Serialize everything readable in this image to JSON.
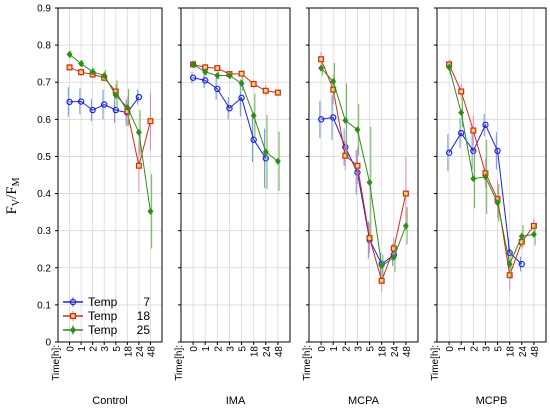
{
  "chart_data": {
    "type": "line",
    "ylabel_main": "F",
    "ylabel_sub1": "V",
    "ylabel_slash": "/F",
    "ylabel_sub2": "M",
    "ylim": [
      0,
      0.9
    ],
    "yticks": [
      "0",
      "0.1",
      "0.2",
      "0.3",
      "0.4",
      "0.5",
      "0.6",
      "0.7",
      "0.8",
      "0.9"
    ],
    "x_axis_title": "Time[h]:",
    "x_ticks": [
      "0",
      "1",
      "2",
      "3",
      "5",
      "18",
      "24",
      "48"
    ],
    "grid": true,
    "legend_position": "bottom-left of first panel",
    "legend": [
      {
        "label": "Temp",
        "value": "7"
      },
      {
        "label": "Temp",
        "value": "18"
      },
      {
        "label": "Temp",
        "value": "25"
      }
    ],
    "series_style": [
      {
        "temp": "7",
        "color": "#2020dd",
        "err": "#5b8ed6",
        "marker": "circle"
      },
      {
        "temp": "18",
        "color": "#cc2a1a",
        "err": "#e97fb0",
        "marker": "square"
      },
      {
        "temp": "25",
        "color": "#2e8b1e",
        "err": "#5fae3a",
        "marker": "diamond"
      }
    ],
    "panels": [
      {
        "name": "Control",
        "series": [
          {
            "temp": "7",
            "values": [
              0.647,
              0.648,
              0.625,
              0.64,
              0.625,
              0.618,
              0.66,
              null
            ],
            "err": [
              0.04,
              0.035,
              0.03,
              0.04,
              0.035,
              0.035,
              0.02,
              null
            ]
          },
          {
            "temp": "18",
            "values": [
              0.74,
              0.727,
              0.721,
              0.712,
              0.675,
              0.622,
              0.475,
              0.595
            ],
            "err": [
              0.01,
              0.01,
              0.01,
              0.01,
              0.02,
              0.04,
              0.07,
              0.08
            ]
          },
          {
            "temp": "25",
            "values": [
              0.775,
              0.75,
              0.728,
              0.718,
              0.665,
              0.632,
              0.565,
              0.352
            ],
            "err": [
              0.01,
              0.01,
              0.01,
              0.015,
              0.04,
              0.05,
              0.06,
              0.1
            ]
          }
        ]
      },
      {
        "name": "IMA",
        "series": [
          {
            "temp": "7",
            "values": [
              0.712,
              0.705,
              0.682,
              0.63,
              0.658,
              0.545,
              0.495,
              null
            ],
            "err": [
              0.015,
              0.02,
              0.03,
              0.03,
              0.05,
              0.06,
              0.08,
              null
            ]
          },
          {
            "temp": "18",
            "values": [
              0.748,
              0.74,
              0.738,
              0.722,
              0.723,
              0.695,
              0.677,
              0.672
            ],
            "err": [
              0.01,
              0.01,
              0.005,
              0.005,
              0.005,
              0.01,
              0.015,
              0.01
            ]
          },
          {
            "temp": "25",
            "values": [
              0.748,
              0.728,
              0.718,
              0.718,
              0.697,
              0.61,
              0.512,
              0.487
            ],
            "err": [
              0.01,
              0.01,
              0.01,
              0.01,
              0.02,
              0.06,
              0.1,
              0.08
            ]
          }
        ]
      },
      {
        "name": "MCPA",
        "series": [
          {
            "temp": "7",
            "values": [
              0.6,
              0.605,
              0.525,
              0.457,
              0.275,
              0.21,
              0.235,
              null
            ],
            "err": [
              0.05,
              0.06,
              0.05,
              0.06,
              0.05,
              0.03,
              0.03,
              null
            ]
          },
          {
            "temp": "18",
            "values": [
              0.762,
              0.68,
              0.502,
              0.475,
              0.28,
              0.165,
              0.252,
              0.4
            ],
            "err": [
              0.02,
              0.04,
              0.04,
              0.05,
              0.04,
              0.03,
              0.03,
              0.1
            ]
          },
          {
            "temp": "25",
            "values": [
              0.738,
              0.702,
              0.597,
              0.572,
              0.43,
              0.205,
              0.228,
              0.313
            ],
            "err": [
              0.02,
              0.05,
              0.1,
              0.07,
              0.15,
              0.03,
              0.04,
              0.05
            ]
          }
        ]
      },
      {
        "name": "MCPB",
        "series": [
          {
            "temp": "7",
            "values": [
              0.51,
              0.563,
              0.515,
              0.585,
              0.515,
              0.24,
              0.21,
              null
            ],
            "err": [
              0.05,
              0.04,
              0.05,
              0.03,
              0.05,
              0.04,
              0.02,
              null
            ]
          },
          {
            "temp": "18",
            "values": [
              0.748,
              0.675,
              0.57,
              0.455,
              0.385,
              0.18,
              0.27,
              0.313
            ],
            "err": [
              0.01,
              0.02,
              0.04,
              0.04,
              0.05,
              0.04,
              0.02,
              0.02
            ]
          },
          {
            "temp": "25",
            "values": [
              0.74,
              0.618,
              0.44,
              0.445,
              0.375,
              0.21,
              0.285,
              0.29
            ],
            "err": [
              0.02,
              0.04,
              0.08,
              0.1,
              0.05,
              0.04,
              0.03,
              0.03
            ]
          }
        ]
      }
    ]
  }
}
